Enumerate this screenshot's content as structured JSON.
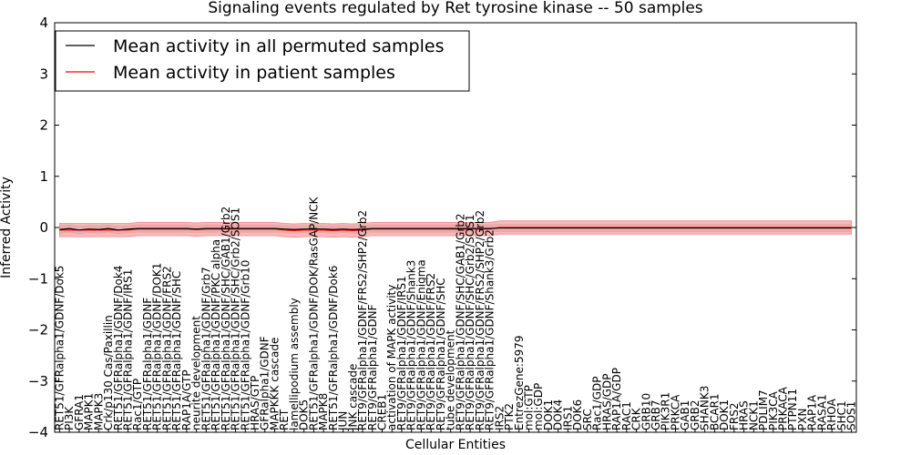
{
  "chart_data": {
    "type": "line",
    "title": "Signaling events regulated by Ret tyrosine kinase -- 50 samples",
    "xlabel": "Cellular Entities",
    "ylabel": "Inferred Activity",
    "ylim": [
      -4,
      4
    ],
    "yticks": [
      -4,
      -3,
      -2,
      -1,
      0,
      1,
      2,
      3,
      4
    ],
    "grid": false,
    "legend_position": "top-left",
    "colors": {
      "permuted": "#000000",
      "patient": "#ff0000",
      "patient_band": "#f28b8b",
      "permuted_band": "#c8c8c8"
    },
    "categories": [
      "RET51/GFRalpha1/GDNF/Dok5",
      "PI3K",
      "GFRA1",
      "MAPK1",
      "MAPK3",
      "Crk/p130 Cas/Paxillin",
      "RET51/GFRalpha1/GDNF/Dok4",
      "RET51/GFRalpha1/GDNF/IRS1",
      "Rac1/GTP",
      "RET51/GFRalpha1/GDNF",
      "RET51/GFRalpha1/GDNF/DOK1",
      "RET51/GFRalpha1/GDNF/FRS2",
      "RET51/GFRalpha1/GDNF/SHC",
      "RAP1A/GTP",
      "neurite development",
      "RET51/GFRalpha1/GDNF/Grb7",
      "RET51/GFRalpha1/GDNF/PKC alpha",
      "RET51/GFRalpha1/GDNF/SHC/GAB1/Grb2",
      "RET51/GFRalpha1/GDNF/SHC/Grb2/SOS1",
      "RET51/GFRalpha1/GDNF/Grb10",
      "HRAS/GTP",
      "GFRalpha1/GDNF",
      "MAPKKK cascade",
      "RET",
      "lamellipodium assembly",
      "DOK5",
      "RET51/GFRalpha1/GDNF/DOK/RasGAP/NCK",
      "MAPK8",
      "RET51/GFRalpha1/GDNF/Dok6",
      "JUN",
      "JNK cascade",
      "RET9/GFRalpha1/GDNF/FRS2/SHP2/Grb2",
      "RET9/GFRalpha1/GDNF",
      "CREB1",
      "activation of MAPK activity",
      "RET9/GFRalpha1/GDNF/IRS1",
      "RET9/GFRalpha1/GDNF/Shank3",
      "RET9/GFRalpha1/GDNF/Enigma",
      "RET9/GFRalpha1/GDNF/FRS2",
      "RET9/GFRalpha1/GDNF/SHC",
      "tube development",
      "RET9/GFRalpha1/GDNF/SHC/GAB1/Grb2",
      "RET9/GFRalpha1/GDNF/SHC/Grb2/SOS1",
      "RET9/GFRalpha1/GDNF/FRS2/SHP2/Grb2",
      "RET9/GFRalpha1/GDNF/Shank3/Grb2",
      "IRS2",
      "PTK2",
      "EntrezGene:5979",
      "mol:GTP",
      "mol:GDP",
      "DOK1",
      "DOK4",
      "IRS1",
      "DOK6",
      "SRC",
      "Rac1/GDP",
      "HRAS/GDP",
      "RAP1A/GDP",
      "RAC1",
      "CRK",
      "GRB10",
      "GRB7",
      "PIK3R1",
      "PRKCA",
      "GAB1",
      "GRB2",
      "SHANK3",
      "BCAR1",
      "DOK1",
      "FRS2",
      "HRAS",
      "NCK1",
      "PDLIM7",
      "PIK3CA",
      "PRKACA",
      "PTPN11",
      "PXN",
      "RAP1A",
      "RASA1",
      "RHOA",
      "SHC1",
      "SOS1"
    ],
    "series": [
      {
        "name": "Mean activity in all permuted samples",
        "values": [
          -0.04,
          -0.02,
          -0.05,
          -0.03,
          -0.04,
          -0.02,
          -0.05,
          -0.03,
          -0.02,
          -0.02,
          -0.02,
          -0.02,
          -0.02,
          -0.02,
          -0.03,
          -0.02,
          -0.02,
          -0.02,
          -0.02,
          -0.02,
          -0.02,
          -0.02,
          -0.02,
          -0.03,
          -0.04,
          -0.03,
          -0.03,
          -0.03,
          -0.04,
          -0.03,
          -0.04,
          -0.03,
          -0.02,
          -0.02,
          -0.02,
          -0.02,
          -0.02,
          -0.02,
          -0.02,
          -0.02,
          -0.02,
          -0.02,
          -0.02,
          -0.02,
          -0.02,
          -0.01,
          -0.01,
          -0.01,
          -0.01,
          -0.01,
          -0.01,
          -0.01,
          -0.01,
          -0.01,
          -0.01,
          -0.01,
          -0.01,
          -0.01,
          -0.01,
          -0.01,
          -0.01,
          -0.01,
          -0.01,
          -0.01,
          -0.01,
          -0.01,
          -0.01,
          -0.01,
          -0.01,
          -0.01,
          -0.01,
          -0.01,
          -0.01,
          -0.01,
          -0.01,
          -0.01,
          -0.01,
          -0.01,
          -0.01,
          -0.01,
          -0.01,
          -0.01
        ],
        "band": 0.07
      },
      {
        "name": "Mean activity in patient samples",
        "values": [
          -0.05,
          -0.05,
          -0.05,
          -0.05,
          -0.05,
          -0.05,
          -0.05,
          -0.05,
          -0.03,
          -0.03,
          -0.03,
          -0.03,
          -0.03,
          -0.03,
          -0.04,
          -0.03,
          -0.03,
          -0.03,
          -0.03,
          -0.03,
          -0.03,
          -0.03,
          -0.03,
          -0.05,
          -0.06,
          -0.05,
          -0.05,
          -0.05,
          -0.06,
          -0.05,
          -0.06,
          -0.05,
          -0.03,
          -0.03,
          -0.03,
          -0.03,
          -0.03,
          -0.03,
          -0.03,
          -0.03,
          -0.03,
          -0.03,
          -0.03,
          -0.03,
          -0.03,
          0.0,
          0.0,
          0.0,
          0.0,
          0.0,
          0.0,
          0.0,
          0.0,
          0.0,
          0.0,
          0.0,
          0.0,
          0.0,
          0.0,
          0.0,
          0.0,
          0.0,
          0.0,
          0.0,
          0.0,
          0.0,
          0.0,
          0.0,
          0.0,
          0.0,
          0.0,
          0.0,
          0.0,
          0.0,
          0.0,
          0.0,
          0.0,
          0.0,
          0.0,
          0.0,
          0.0,
          0.0
        ],
        "band": 0.13
      }
    ]
  }
}
